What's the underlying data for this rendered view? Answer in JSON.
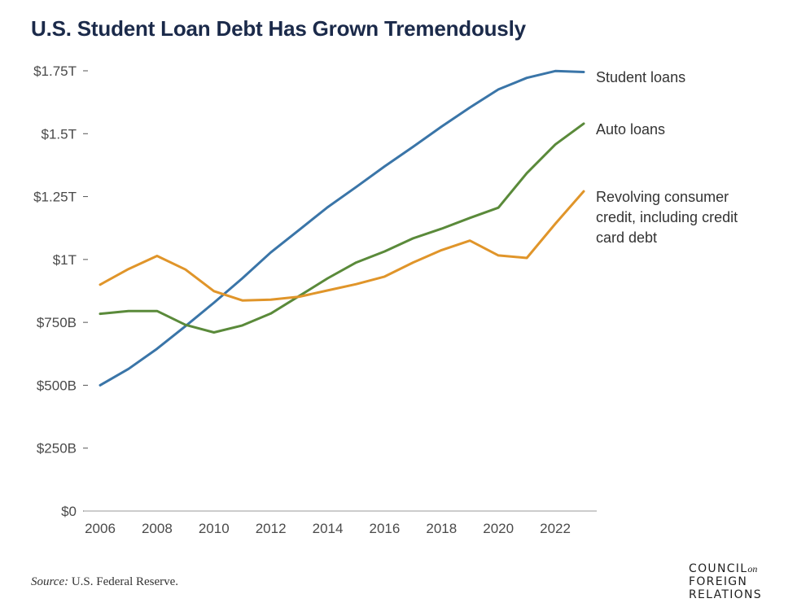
{
  "title": "U.S. Student Loan Debt Has Grown Tremendously",
  "source": {
    "label": "Source:",
    "text": "U.S. Federal Reserve."
  },
  "logo": {
    "line1": "COUNCIL",
    "on": "on",
    "line2": "FOREIGN",
    "line3": "RELATIONS"
  },
  "chart_data": {
    "type": "line",
    "title": "U.S. Student Loan Debt Has Grown Tremendously",
    "xlabel": "",
    "ylabel": "",
    "x": [
      2006,
      2007,
      2008,
      2009,
      2010,
      2011,
      2012,
      2013,
      2014,
      2015,
      2016,
      2017,
      2018,
      2019,
      2020,
      2021,
      2022,
      2023
    ],
    "x_ticks": [
      2006,
      2008,
      2010,
      2012,
      2014,
      2016,
      2018,
      2020,
      2022
    ],
    "x_tick_labels": [
      "2006",
      "2008",
      "2010",
      "2012",
      "2014",
      "2016",
      "2018",
      "2020",
      "2022"
    ],
    "xlim": [
      2006,
      2023
    ],
    "ylim": [
      0,
      1750
    ],
    "y_unit": "billions of dollars",
    "y_ticks": [
      0,
      250,
      500,
      750,
      1000,
      1250,
      1500,
      1750
    ],
    "y_tick_labels": [
      "$0",
      "$250B",
      "$500B",
      "$750B",
      "$1T",
      "$1.25T",
      "$1.5T",
      "$1.75T"
    ],
    "grid": false,
    "legend": "direct labels at right",
    "series": [
      {
        "name": "Student loans",
        "label_lines": [
          "Student loans"
        ],
        "color": "#3a75a8",
        "values": [
          500,
          565,
          645,
          735,
          828,
          925,
          1028,
          1118,
          1208,
          1288,
          1370,
          1448,
          1528,
          1604,
          1676,
          1722,
          1749,
          1745
        ]
      },
      {
        "name": "Auto loans",
        "label_lines": [
          "Auto loans"
        ],
        "color": "#5a8a3a",
        "values": [
          784,
          795,
          795,
          740,
          710,
          738,
          785,
          855,
          925,
          988,
          1032,
          1084,
          1122,
          1165,
          1206,
          1343,
          1457,
          1540
        ]
      },
      {
        "name": "Revolving consumer credit, including credit card debt",
        "label_lines": [
          "Revolving consumer",
          "credit, including credit",
          "card debt"
        ],
        "color": "#e0952a",
        "values": [
          900,
          962,
          1014,
          960,
          874,
          837,
          840,
          852,
          877,
          902,
          932,
          988,
          1037,
          1075,
          1016,
          1006,
          1142,
          1271
        ]
      }
    ]
  }
}
